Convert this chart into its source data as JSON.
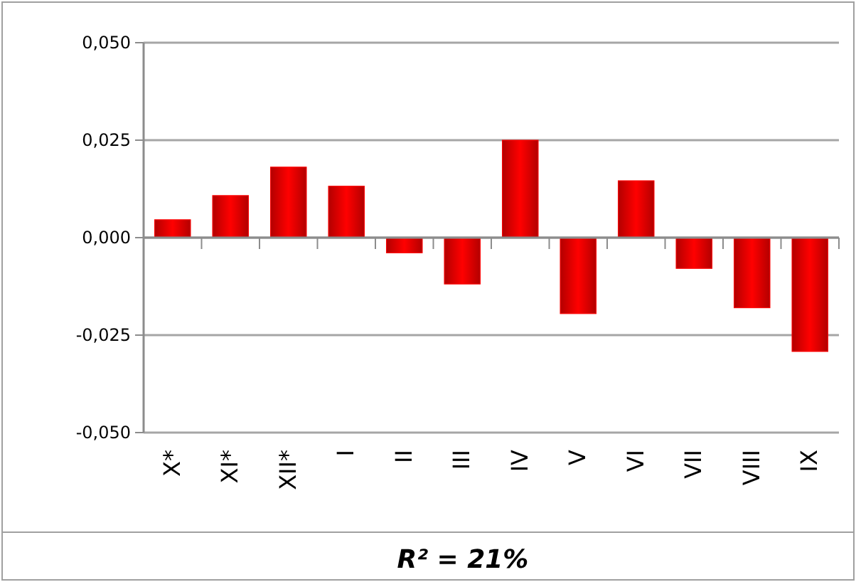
{
  "chart_data": {
    "type": "bar",
    "xlabel": "R² = 21%",
    "categories": [
      "X*",
      "XI*",
      "XII*",
      "I",
      "II",
      "III",
      "IV",
      "V",
      "VI",
      "VII",
      "VIII",
      "IX"
    ],
    "values": [
      0.0046,
      0.0108,
      0.0181,
      0.0132,
      -0.0039,
      -0.0119,
      0.025,
      -0.0195,
      0.0146,
      -0.0079,
      -0.018,
      -0.0292
    ],
    "color": "#ff0000",
    "ylim": [
      -0.05,
      0.05
    ],
    "yticks": [
      {
        "value": -0.05,
        "label": "-0,050"
      },
      {
        "value": -0.025,
        "label": "-0,025"
      },
      {
        "value": 0,
        "label": "0,000"
      },
      {
        "value": 0.025,
        "label": "0,025"
      },
      {
        "value": 0.05,
        "label": "0,050"
      }
    ],
    "grid": "y"
  }
}
